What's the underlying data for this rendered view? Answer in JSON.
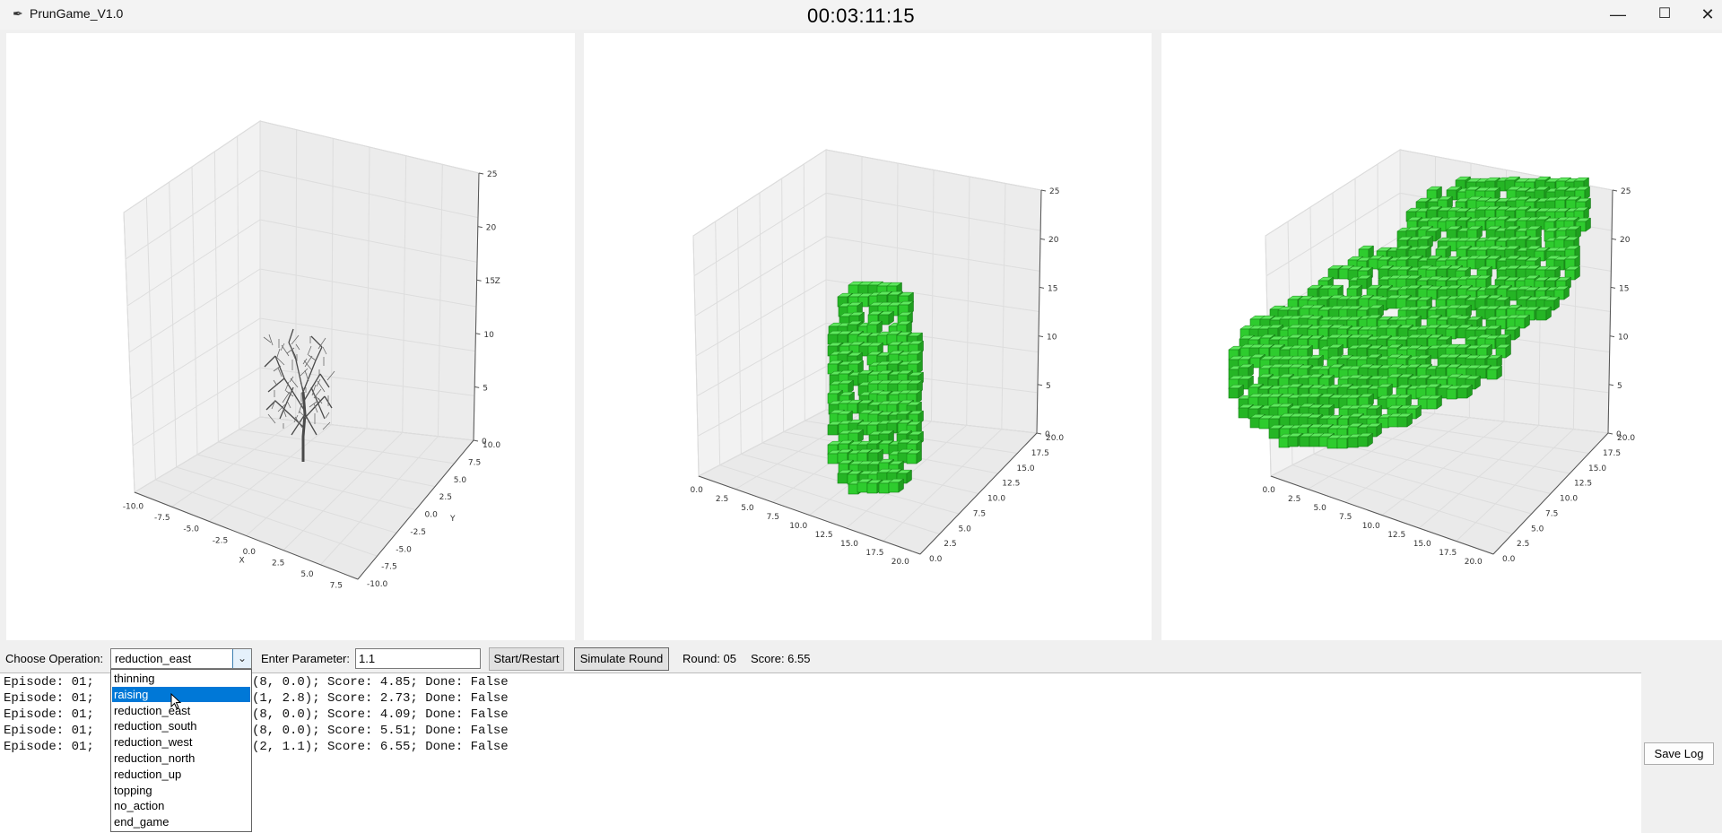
{
  "window": {
    "title": "PrunGame_V1.0",
    "timer": "00:03:11:15"
  },
  "colors": {
    "voxel": "#2ecc2e",
    "selection": "#0078d7"
  },
  "plots": [
    {
      "name": "tree-skeleton-plot",
      "z_ticks": [
        "0",
        "5",
        "10",
        "15",
        "20",
        "25"
      ],
      "z_label": "Z",
      "x_ticks": [
        "-10.0",
        "-7.5",
        "-5.0",
        "-2.5",
        "0.0",
        "2.5",
        "5.0",
        "7.5"
      ],
      "x_label": "X",
      "y_ticks": [
        "10.0",
        "7.5",
        "5.0",
        "2.5",
        "0.0",
        "-2.5",
        "-5.0",
        "-7.5",
        "-10.0"
      ],
      "y_label": "Y"
    },
    {
      "name": "voxel-plot-initial",
      "z_ticks": [
        "0",
        "5",
        "10",
        "15",
        "20",
        "25"
      ],
      "x_ticks": [
        "0.0",
        "2.5",
        "5.0",
        "7.5",
        "10.0",
        "12.5",
        "15.0",
        "17.5",
        "20.0"
      ],
      "y_ticks": [
        "20.0",
        "17.5",
        "15.0",
        "12.5",
        "10.0",
        "7.5",
        "5.0",
        "2.5",
        "0.0"
      ]
    },
    {
      "name": "voxel-plot-current",
      "z_ticks": [
        "0",
        "5",
        "10",
        "15",
        "20",
        "25"
      ],
      "x_ticks": [
        "0.0",
        "2.5",
        "5.0",
        "7.5",
        "10.0",
        "12.5",
        "15.0",
        "17.5",
        "20.0"
      ],
      "y_ticks": [
        "20.0",
        "17.5",
        "15.0",
        "12.5",
        "10.0",
        "7.5",
        "5.0",
        "2.5",
        "0.0"
      ]
    }
  ],
  "controls": {
    "operation_label": "Choose Operation:",
    "operation_value": "reduction_east",
    "param_label": "Enter Parameter:",
    "param_value": "1.1",
    "start_label": "Start/Restart",
    "simulate_label": "Simulate Round",
    "round_text": "Round: 05",
    "score_text": "Score: 6.55",
    "save_label": "Save Log"
  },
  "dropdown_options": [
    "thinning",
    "raising",
    "reduction_east",
    "reduction_south",
    "reduction_west",
    "reduction_north",
    "reduction_up",
    "topping",
    "no_action",
    "end_game"
  ],
  "dropdown_selected": "raising",
  "log_lines": [
    "Episode: 01; ",
    "Episode: 01; ",
    "Episode: 01; ",
    "Episode: 01; ",
    "Episode: 01; "
  ],
  "log_tails": [
    "(8, 0.0); Score: 4.85; Done: False",
    "(1, 2.8); Score: 2.73; Done: False",
    "(8, 0.0); Score: 4.09; Done: False",
    "(8, 0.0); Score: 5.51; Done: False",
    "(2, 1.1); Score: 6.55; Done: False"
  ]
}
